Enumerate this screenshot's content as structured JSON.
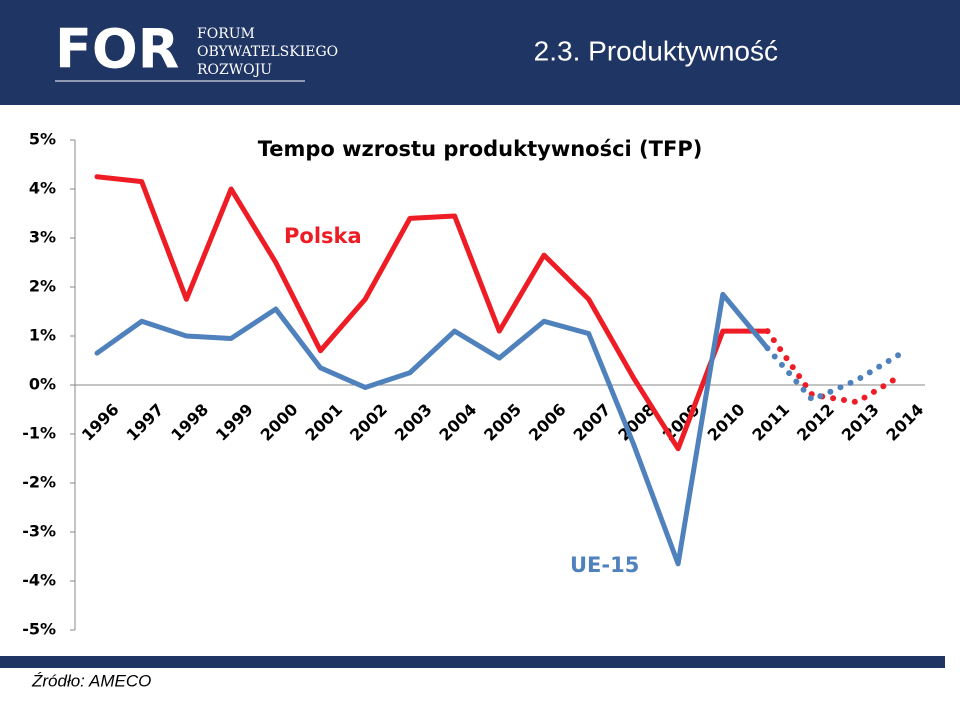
{
  "header": {
    "logo": "FOR",
    "logo_text": [
      "FORUM",
      "OBYWATELSKIEGO",
      "ROZWOJU"
    ],
    "title": "2.3. Produktywność"
  },
  "source": "Źródło: AMECO",
  "chart_data": {
    "type": "line",
    "title": "Tempo wzrostu produktywności (TFP)",
    "categories": [
      "1996",
      "1997",
      "1998",
      "1999",
      "2000",
      "2001",
      "2002",
      "2003",
      "2004",
      "2005",
      "2006",
      "2007",
      "2008",
      "2009",
      "2010",
      "2011",
      "2012",
      "2013",
      "2014"
    ],
    "forecast_from": "2011",
    "series": [
      {
        "name": "Polska",
        "color": "#ee1c24",
        "values": [
          4.25,
          4.15,
          1.75,
          4.0,
          2.5,
          0.7,
          1.75,
          3.4,
          3.45,
          1.1,
          2.65,
          1.75,
          0.15,
          -1.3,
          1.1,
          1.1,
          -0.2,
          -0.35,
          0.2
        ]
      },
      {
        "name": "UE-15",
        "color": "#4f81bd",
        "values": [
          0.65,
          1.3,
          1.0,
          0.95,
          1.55,
          0.35,
          -0.05,
          0.25,
          1.1,
          0.55,
          1.3,
          1.05,
          -1.2,
          -3.65,
          1.85,
          0.75,
          -0.3,
          0.1,
          0.65
        ]
      }
    ],
    "ylim": [
      -5,
      5
    ],
    "yticks": [
      {
        "value": 5,
        "label": "5%"
      },
      {
        "value": 4,
        "label": "4%"
      },
      {
        "value": 3,
        "label": "3%"
      },
      {
        "value": 2,
        "label": "2%"
      },
      {
        "value": 1,
        "label": "1%"
      },
      {
        "value": 0,
        "label": "0%"
      },
      {
        "value": -1,
        "label": "-1%"
      },
      {
        "value": -2,
        "label": "-2%"
      },
      {
        "value": -3,
        "label": "-3%"
      },
      {
        "value": -4,
        "label": "-4%"
      },
      {
        "value": -5,
        "label": "-5%"
      }
    ]
  }
}
